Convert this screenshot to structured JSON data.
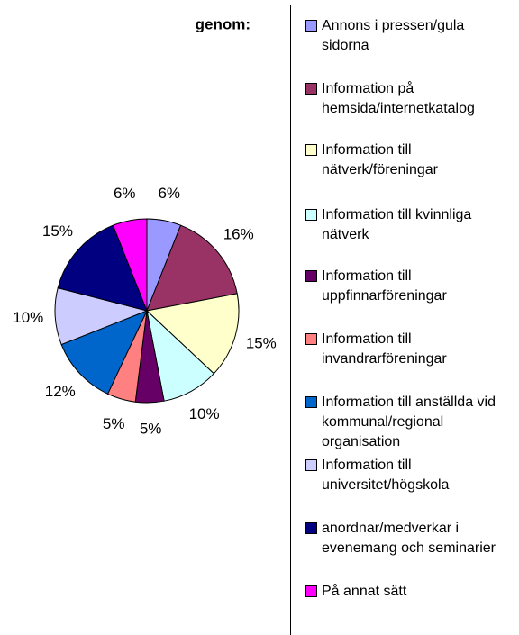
{
  "chart_data": {
    "type": "pie",
    "title": "genom:",
    "categories": [
      "Annons i pressen/gula sidorna",
      "Information på hemsida/internetkatalog",
      "Information till nätverk/föreningar",
      "Information till kvinnliga nätverk",
      "Information till uppfinnarföreningar",
      "Information till invandrarföreningar",
      "Information till anställda vid kommunal/regional organisation",
      "Information till universitet/högskola",
      "anordnar/medverkar i evenemang och seminarier",
      "På annat sätt"
    ],
    "values": [
      6,
      16,
      15,
      10,
      5,
      5,
      12,
      10,
      15,
      6
    ],
    "value_labels": [
      "6%",
      "16%",
      "15%",
      "10%",
      "5%",
      "5%",
      "12%",
      "10%",
      "15%",
      "6%"
    ],
    "colors": [
      "#9999ff",
      "#993366",
      "#ffffcc",
      "#ccffff",
      "#660066",
      "#ff8080",
      "#0066cc",
      "#ccccff",
      "#000080",
      "#ff00ff"
    ],
    "legend": "right"
  }
}
